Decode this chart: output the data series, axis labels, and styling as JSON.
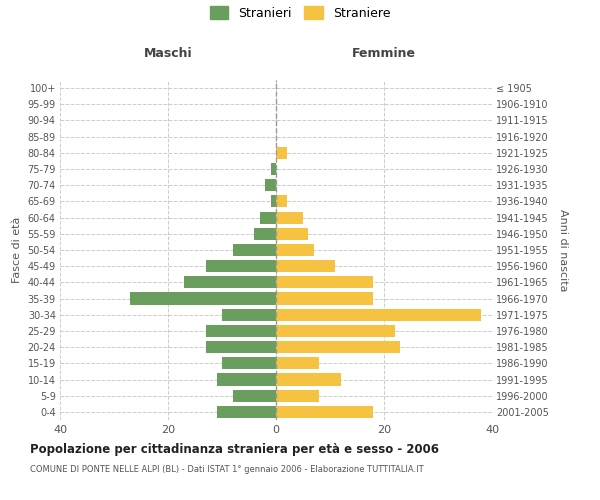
{
  "age_groups": [
    "0-4",
    "5-9",
    "10-14",
    "15-19",
    "20-24",
    "25-29",
    "30-34",
    "35-39",
    "40-44",
    "45-49",
    "50-54",
    "55-59",
    "60-64",
    "65-69",
    "70-74",
    "75-79",
    "80-84",
    "85-89",
    "90-94",
    "95-99",
    "100+"
  ],
  "birth_years": [
    "2001-2005",
    "1996-2000",
    "1991-1995",
    "1986-1990",
    "1981-1985",
    "1976-1980",
    "1971-1975",
    "1966-1970",
    "1961-1965",
    "1956-1960",
    "1951-1955",
    "1946-1950",
    "1941-1945",
    "1936-1940",
    "1931-1935",
    "1926-1930",
    "1921-1925",
    "1916-1920",
    "1911-1915",
    "1906-1910",
    "≤ 1905"
  ],
  "males": [
    11,
    8,
    11,
    10,
    13,
    13,
    10,
    27,
    17,
    13,
    8,
    4,
    3,
    1,
    2,
    1,
    0,
    0,
    0,
    0,
    0
  ],
  "females": [
    18,
    8,
    12,
    8,
    23,
    22,
    38,
    18,
    18,
    11,
    7,
    6,
    5,
    2,
    0,
    0,
    2,
    0,
    0,
    0,
    0
  ],
  "male_color": "#6a9e5f",
  "female_color": "#f5c242",
  "grid_color": "#cccccc",
  "title": "Popolazione per cittadinanza straniera per età e sesso - 2006",
  "subtitle": "COMUNE DI PONTE NELLE ALPI (BL) - Dati ISTAT 1° gennaio 2006 - Elaborazione TUTTITALIA.IT",
  "xlabel_left": "Maschi",
  "xlabel_right": "Femmine",
  "ylabel_left": "Fasce di età",
  "ylabel_right": "Anni di nascita",
  "legend_male": "Stranieri",
  "legend_female": "Straniere",
  "xlim": 40,
  "bar_height": 0.75
}
